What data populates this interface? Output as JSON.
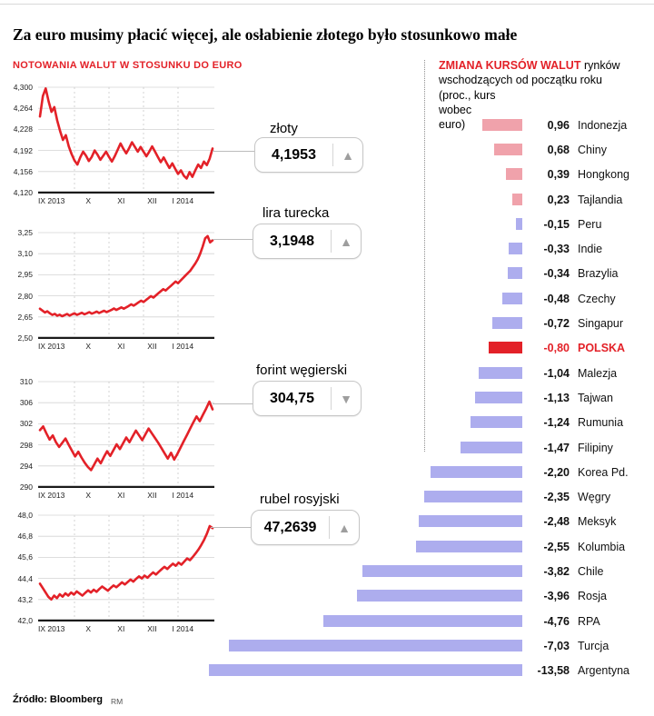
{
  "title": "Za euro musimy płacić więcej, ale osłabienie złotego było stosunkowo małe",
  "source": {
    "label": "Źródło: Bloomberg",
    "credit": "RM"
  },
  "colors": {
    "accent_red": "#e32128",
    "positive_pink": "#f0a2ab",
    "negative_blue": "#adadee"
  },
  "left": {
    "header": "NOTOWANIA WALUT W STOSUNKU DO EURO"
  },
  "right": {
    "header_red": "ZMIANA KURSÓW WALUT",
    "header_sub": "rynków wschodzących od początku roku",
    "header_note": "(proc., kurs wobec euro)"
  },
  "chart_data": [
    {
      "type": "line",
      "name": "złoty",
      "current": "4,1953",
      "trend": "up",
      "ylim": [
        4.12,
        4.3
      ],
      "yticks": [
        "4,300",
        "4,264",
        "4,228",
        "4,192",
        "4,156",
        "4,120"
      ],
      "x_categories": [
        "IX 2013",
        "X",
        "XI",
        "XII",
        "I 2014"
      ],
      "values": [
        4.25,
        4.285,
        4.298,
        4.276,
        4.258,
        4.266,
        4.243,
        4.225,
        4.21,
        4.218,
        4.199,
        4.186,
        4.175,
        4.168,
        4.18,
        4.19,
        4.183,
        4.174,
        4.181,
        4.192,
        4.185,
        4.176,
        4.183,
        4.19,
        4.181,
        4.173,
        4.182,
        4.193,
        4.204,
        4.195,
        4.187,
        4.196,
        4.206,
        4.198,
        4.19,
        4.198,
        4.19,
        4.182,
        4.19,
        4.199,
        4.19,
        4.181,
        4.172,
        4.18,
        4.171,
        4.162,
        4.17,
        4.161,
        4.152,
        4.158,
        4.149,
        4.144,
        4.155,
        4.147,
        4.158,
        4.168,
        4.162,
        4.173,
        4.167,
        4.178,
        4.1953
      ]
    },
    {
      "type": "line",
      "name": "lira turecka",
      "current": "3,1948",
      "trend": "up",
      "ylim": [
        2.5,
        3.25
      ],
      "yticks": [
        "3,25",
        "3,10",
        "2,95",
        "2,80",
        "2,65",
        "2,50"
      ],
      "x_categories": [
        "IX 2013",
        "X",
        "XI",
        "XII",
        "I 2014"
      ],
      "values": [
        2.708,
        2.695,
        2.682,
        2.69,
        2.676,
        2.664,
        2.672,
        2.659,
        2.666,
        2.655,
        2.663,
        2.671,
        2.66,
        2.668,
        2.676,
        2.665,
        2.672,
        2.68,
        2.669,
        2.676,
        2.684,
        2.673,
        2.68,
        2.688,
        2.678,
        2.686,
        2.694,
        2.684,
        2.692,
        2.7,
        2.71,
        2.7,
        2.709,
        2.718,
        2.708,
        2.718,
        2.728,
        2.74,
        2.73,
        2.742,
        2.754,
        2.766,
        2.756,
        2.77,
        2.784,
        2.798,
        2.788,
        2.803,
        2.818,
        2.833,
        2.848,
        2.838,
        2.854,
        2.87,
        2.886,
        2.902,
        2.89,
        2.908,
        2.926,
        2.944,
        2.962,
        2.98,
        3.005,
        3.03,
        3.06,
        3.1,
        3.15,
        3.21,
        3.225,
        3.18,
        3.1948
      ]
    },
    {
      "type": "line",
      "name": "forint węgierski",
      "current": "304,75",
      "trend": "down",
      "ylim": [
        290,
        310
      ],
      "yticks": [
        "310",
        "306",
        "302",
        "298",
        "294",
        "290"
      ],
      "x_categories": [
        "IX 2013",
        "X",
        "XI",
        "XII",
        "I 2014"
      ],
      "values": [
        300.8,
        301.5,
        300.2,
        299.0,
        299.8,
        298.5,
        297.6,
        298.4,
        299.2,
        298.0,
        296.9,
        295.8,
        296.7,
        295.6,
        294.6,
        293.8,
        293.2,
        294.3,
        295.4,
        294.5,
        295.7,
        296.8,
        295.9,
        297.0,
        298.1,
        297.2,
        298.3,
        299.4,
        298.5,
        299.6,
        300.7,
        299.8,
        298.9,
        300.0,
        301.1,
        300.2,
        299.3,
        298.4,
        297.4,
        296.4,
        295.4,
        296.5,
        295.2,
        296.3,
        297.5,
        298.7,
        299.9,
        301.1,
        302.3,
        303.4,
        302.5,
        303.7,
        304.9,
        306.2,
        304.75
      ]
    },
    {
      "type": "line",
      "name": "rubel rosyjski",
      "current": "47,2639",
      "trend": "up",
      "ylim": [
        42.0,
        48.0
      ],
      "yticks": [
        "48,0",
        "46,8",
        "45,6",
        "44,4",
        "43,2",
        "42,0"
      ],
      "x_categories": [
        "IX 2013",
        "X",
        "XI",
        "XII",
        "I 2014"
      ],
      "values": [
        44.1,
        43.85,
        43.6,
        43.35,
        43.2,
        43.42,
        43.28,
        43.5,
        43.36,
        43.55,
        43.42,
        43.6,
        43.48,
        43.66,
        43.54,
        43.42,
        43.58,
        43.72,
        43.6,
        43.76,
        43.64,
        43.8,
        43.94,
        43.82,
        43.7,
        43.86,
        44.0,
        43.9,
        44.04,
        44.18,
        44.06,
        44.2,
        44.34,
        44.22,
        44.38,
        44.52,
        44.4,
        44.56,
        44.44,
        44.6,
        44.74,
        44.62,
        44.78,
        44.92,
        45.06,
        44.94,
        45.1,
        45.24,
        45.12,
        45.3,
        45.18,
        45.36,
        45.54,
        45.44,
        45.62,
        45.82,
        46.04,
        46.3,
        46.6,
        46.95,
        47.38,
        47.2639
      ]
    },
    {
      "type": "bar",
      "orientation": "horizontal",
      "title": "ZMIANA KURSÓW WALUT rynków wschodzących od początku roku (proc., kurs wobec euro)",
      "rows": [
        {
          "country": "Indonezja",
          "value": 0.96,
          "display": "0,96"
        },
        {
          "country": "Chiny",
          "value": 0.68,
          "display": "0,68"
        },
        {
          "country": "Hongkong",
          "value": 0.39,
          "display": "0,39"
        },
        {
          "country": "Tajlandia",
          "value": 0.23,
          "display": "0,23"
        },
        {
          "country": "Peru",
          "value": -0.15,
          "display": "-0,15"
        },
        {
          "country": "Indie",
          "value": -0.33,
          "display": "-0,33"
        },
        {
          "country": "Brazylia",
          "value": -0.34,
          "display": "-0,34"
        },
        {
          "country": "Czechy",
          "value": -0.48,
          "display": "-0,48"
        },
        {
          "country": "Singapur",
          "value": -0.72,
          "display": "-0,72"
        },
        {
          "country": "POLSKA",
          "value": -0.8,
          "display": "-0,80",
          "highlight": true
        },
        {
          "country": "Malezja",
          "value": -1.04,
          "display": "-1,04"
        },
        {
          "country": "Tajwan",
          "value": -1.13,
          "display": "-1,13"
        },
        {
          "country": "Rumunia",
          "value": -1.24,
          "display": "-1,24"
        },
        {
          "country": "Filipiny",
          "value": -1.47,
          "display": "-1,47"
        },
        {
          "country": "Korea Pd.",
          "value": -2.2,
          "display": "-2,20"
        },
        {
          "country": "Węgry",
          "value": -2.35,
          "display": "-2,35"
        },
        {
          "country": "Meksyk",
          "value": -2.48,
          "display": "-2,48"
        },
        {
          "country": "Kolumbia",
          "value": -2.55,
          "display": "-2,55"
        },
        {
          "country": "Chile",
          "value": -3.82,
          "display": "-3,82"
        },
        {
          "country": "Rosja",
          "value": -3.96,
          "display": "-3,96"
        },
        {
          "country": "RPA",
          "value": -4.76,
          "display": "-4,76"
        },
        {
          "country": "Turcja",
          "value": -7.03,
          "display": "-7,03"
        },
        {
          "country": "Argentyna",
          "value": -13.58,
          "display": "-13,58"
        }
      ]
    }
  ]
}
